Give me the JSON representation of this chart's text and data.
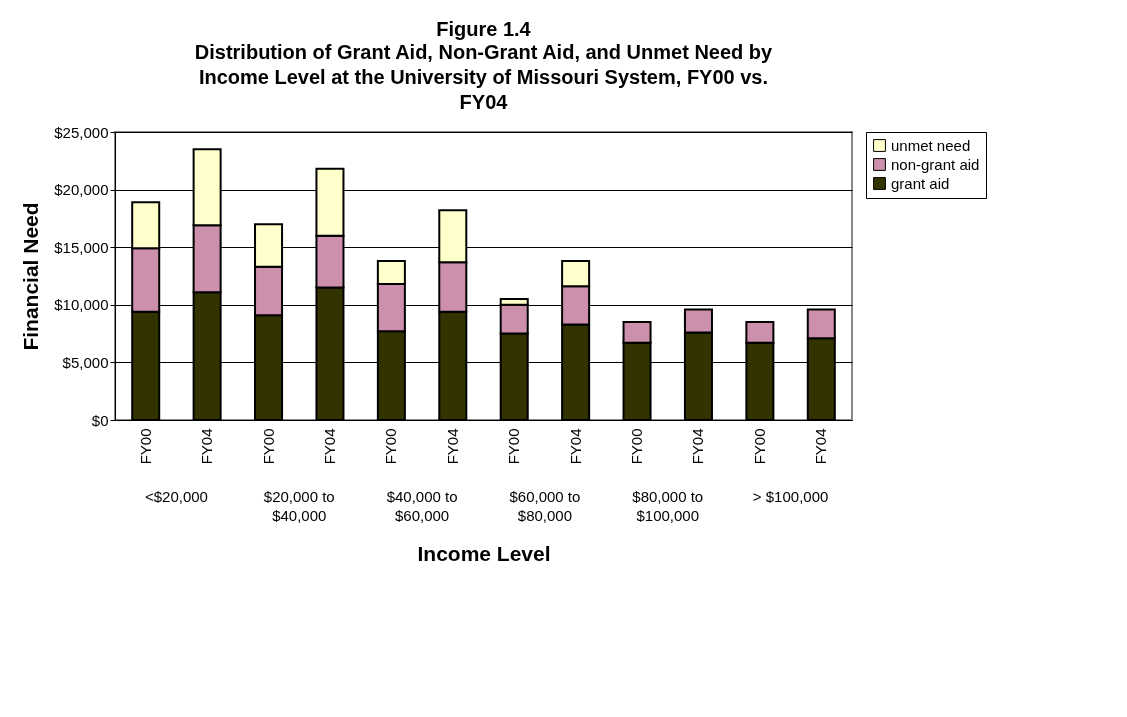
{
  "chart_data": {
    "type": "bar",
    "stacked": true,
    "title": "Figure 1.4",
    "subtitle": "Distribution of Grant Aid, Non-Grant Aid, and Unmet Need by Income Level at the University of Missouri System, FY00 vs. FY04",
    "xlabel": "Income Level",
    "ylabel": "Financial Need",
    "categories": [
      "FY00",
      "FY04",
      "FY00",
      "FY04",
      "FY00",
      "FY04",
      "FY00",
      "FY04",
      "FY00",
      "FY04",
      "FY00",
      "FY04"
    ],
    "series": [
      {
        "name": "grant aid",
        "color": "#333300",
        "values": [
          9400,
          11100,
          9100,
          11500,
          7700,
          9400,
          7500,
          8300,
          6700,
          7600,
          6700,
          7100
        ]
      },
      {
        "name": "non-grant aid",
        "color": "#cc8fac",
        "values": [
          5500,
          5800,
          4200,
          4500,
          4100,
          4300,
          2500,
          3300,
          1800,
          2000,
          1800,
          2500
        ]
      },
      {
        "name": "unmet need",
        "color": "#ffffcc",
        "values": [
          4000,
          6600,
          3700,
          5800,
          2000,
          4500,
          500,
          2200,
          null,
          null,
          null,
          null
        ]
      }
    ],
    "ylim": [
      0,
      25000
    ],
    "yticks": [
      {
        "value": 0,
        "label": "$0"
      },
      {
        "value": 5000,
        "label": "$5,000"
      },
      {
        "value": 10000,
        "label": "$10,000"
      },
      {
        "value": 15000,
        "label": "$15,000"
      },
      {
        "value": 20000,
        "label": "$20,000"
      },
      {
        "value": 25000,
        "label": "$25,000"
      }
    ],
    "grid": "y",
    "legend": "right",
    "annotations": [
      "<$20,000",
      "$20,000 to $40,000",
      "$40,000 to $60,000",
      "$60,000 to $80,000",
      "$80,000 to $100,000",
      "> $100,000"
    ]
  }
}
